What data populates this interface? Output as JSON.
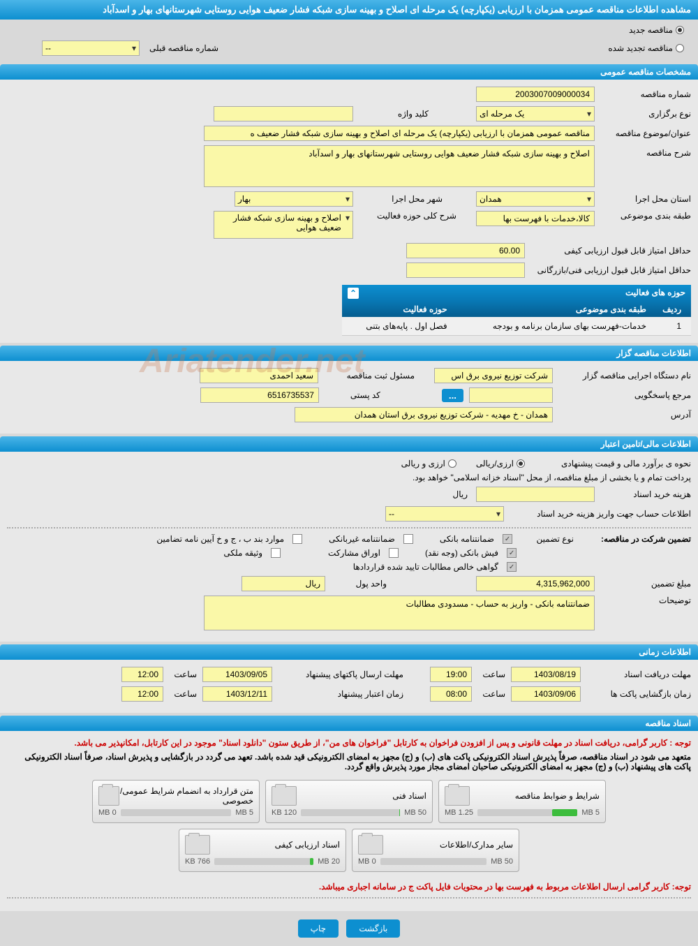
{
  "header": {
    "title": "مشاهده اطلاعات مناقصه عمومی همزمان با ارزیابی (یکپارچه) یک مرحله ای اصلاح و بهینه سازی شبکه فشار ضعیف هوایی روستایی شهرستانهای بهار و اسدآباد"
  },
  "tender_type": {
    "new_label": "مناقصه جدید",
    "renewed_label": "مناقصه تجدید شده",
    "prev_number_label": "شماره مناقصه قبلی",
    "prev_number_value": "--"
  },
  "general": {
    "section_title": "مشخصات مناقصه عمومی",
    "number_label": "شماره مناقصه",
    "number_value": "2003007009000034",
    "holding_type_label": "نوع برگزاری",
    "holding_type_value": "یک مرحله ای",
    "keyword_label": "کلید واژه",
    "keyword_value": "",
    "subject_label": "عنوان/موضوع مناقصه",
    "subject_value": "مناقصه عمومی همزمان با ارزیابی (یکپارچه) یک مرحله ای اصلاح و بهینه سازی شبکه فشار ضعیف ه",
    "desc_label": "شرح مناقصه",
    "desc_value": "اصلاح و بهینه سازی شبکه فشار ضعیف هوایی روستایی شهرستانهای بهار و اسدآباد",
    "province_label": "استان محل اجرا",
    "province_value": "همدان",
    "city_label": "شهر محل اجرا",
    "city_value": "بهار",
    "classification_label": "طبقه بندی موضوعی",
    "classification_value": "کالا،خدمات با فهرست بها",
    "activity_desc_label": "شرح کلی حوزه فعالیت",
    "activity_desc_value": "اصلاح و بهینه سازی شبکه فشار ضعیف هوایی",
    "min_quality_score_label": "حداقل امتیاز قابل قبول ارزیابی کیفی",
    "min_quality_score_value": "60.00",
    "min_tech_score_label": "حداقل امتیاز قابل قبول ارزیابی فنی/بازرگانی",
    "min_tech_score_value": ""
  },
  "activity_table": {
    "title": "حوزه های فعالیت",
    "col_row": "ردیف",
    "col_classification": "طبقه بندی موضوعی",
    "col_activity": "حوزه فعالیت",
    "rows": [
      {
        "n": "1",
        "classification": "خدمات-فهرست بهای سازمان برنامه و بودجه",
        "activity": "فصل اول . پایه‌های بتنی"
      }
    ]
  },
  "holder": {
    "section_title": "اطلاعات مناقصه گزار",
    "org_label": "نام دستگاه اجرایی مناقصه گزار",
    "org_value": "شرکت توزیع نیروی برق اس",
    "registrar_label": "مسئول ثبت مناقصه",
    "registrar_value": "سعید احمدی",
    "responder_label": "مرجع پاسخگویی",
    "responder_value": "",
    "postal_label": "کد پستی",
    "postal_value": "6516735537",
    "address_label": "آدرس",
    "address_value": "همدان - خ مهدیه - شرکت توزیع نیروی برق استان همدان"
  },
  "financial": {
    "section_title": "اطلاعات مالی/تامین اعتبار",
    "estimate_label": "نحوه ی برآورد مالی و قیمت پیشنهادی",
    "currency_rial": "ارزی/ریالی",
    "currency_foreign": "ارزی و ریالی",
    "treasury_note": "پرداخت تمام و یا بخشی از مبلغ مناقصه، از محل \"اسناد خزانه اسلامی\" خواهد بود.",
    "doc_cost_label": "هزینه خرید اسناد",
    "doc_cost_value": "",
    "doc_cost_unit": "ریال",
    "deposit_account_label": "اطلاعات حساب جهت واریز هزینه خرید اسناد",
    "deposit_account_value": "--",
    "guarantee_title": "تضمین شرکت در مناقصه:",
    "guarantee_type_label": "نوع تضمین",
    "cb_bank_guarantee": "ضمانتنامه بانکی",
    "cb_nonbank_guarantee": "ضمانتنامه غیربانکی",
    "cb_bond_items": "موارد بند ب ، ج و خ آیین نامه تضامین",
    "cb_bank_receipt": "فیش بانکی (وجه نقد)",
    "cb_participation_papers": "اوراق مشارکت",
    "cb_property_deed": "وثیقه ملکی",
    "cb_net_receivables": "گواهی خالص مطالبات تایید شده قراردادها",
    "amount_label": "مبلغ تضمین",
    "amount_value": "4,315,962,000",
    "currency_label": "واحد پول",
    "currency_value": "ریال",
    "notes_label": "توضیحات",
    "notes_value": "ضمانتنامه بانکی - واریز به حساب - مسدودی مطالبات"
  },
  "timing": {
    "section_title": "اطلاعات زمانی",
    "receive_deadline_label": "مهلت دریافت اسناد",
    "receive_date": "1403/08/19",
    "receive_time": "19:00",
    "submit_deadline_label": "مهلت ارسال پاکتهای پیشنهاد",
    "submit_date": "1403/09/05",
    "submit_time": "12:00",
    "opening_label": "زمان بازگشایی پاکت ها",
    "opening_date": "1403/09/06",
    "opening_time": "08:00",
    "validity_label": "زمان اعتبار پیشنهاد",
    "validity_date": "1403/12/11",
    "validity_time": "12:00",
    "time_label": "ساعت"
  },
  "documents": {
    "section_title": "اسناد مناقصه",
    "notice1": "توجه : کاربر گرامی، دریافت اسناد در مهلت قانونی و پس از افزودن فراخوان به کارتابل \"فراخوان های من\"، از طریق ستون \"دانلود اسناد\" موجود در این کارتابل، امکانپذیر می باشد.",
    "notice2": "متعهد می شود در اسناد مناقصه، صرفاً پذیرش اسناد الکترونیکی پاکت های (ب) و (ج) مجهز به امضای الکترونیکی قید شده باشد. تعهد می گردد در بازگشایی و پذیرش اسناد، صرفاً اسناد الکترونیکی پاکت های پیشنهاد (ب) و (ج) مجهز به امضای الکترونیکی صاحبان امضای مجاز مورد پذیرش واقع گردد.",
    "files": [
      {
        "name": "شرایط و ضوابط مناقصه",
        "used": "1.25 MB",
        "total": "5 MB",
        "pct": 25
      },
      {
        "name": "اسناد فنی",
        "used": "120 KB",
        "total": "50 MB",
        "pct": 1
      },
      {
        "name": "متن قرارداد به انضمام شرایط عمومی/خصوصی",
        "used": "0 MB",
        "total": "5 MB",
        "pct": 0
      },
      {
        "name": "سایر مدارک/اطلاعات",
        "used": "0 MB",
        "total": "50 MB",
        "pct": 0
      },
      {
        "name": "اسناد ارزیابی کیفی",
        "used": "766 KB",
        "total": "20 MB",
        "pct": 4
      }
    ],
    "footer_notice": "توجه: کاربر گرامی ارسال اطلاعات مربوط به فهرست بها در محتویات فایل پاکت ج در سامانه اجباری میباشد."
  },
  "buttons": {
    "back": "بازگشت",
    "print": "چاپ"
  },
  "watermark": "Ariatender.net",
  "colors": {
    "header_bg": "#0d8fd0",
    "field_bg": "#faf8a8",
    "red": "#c00"
  }
}
